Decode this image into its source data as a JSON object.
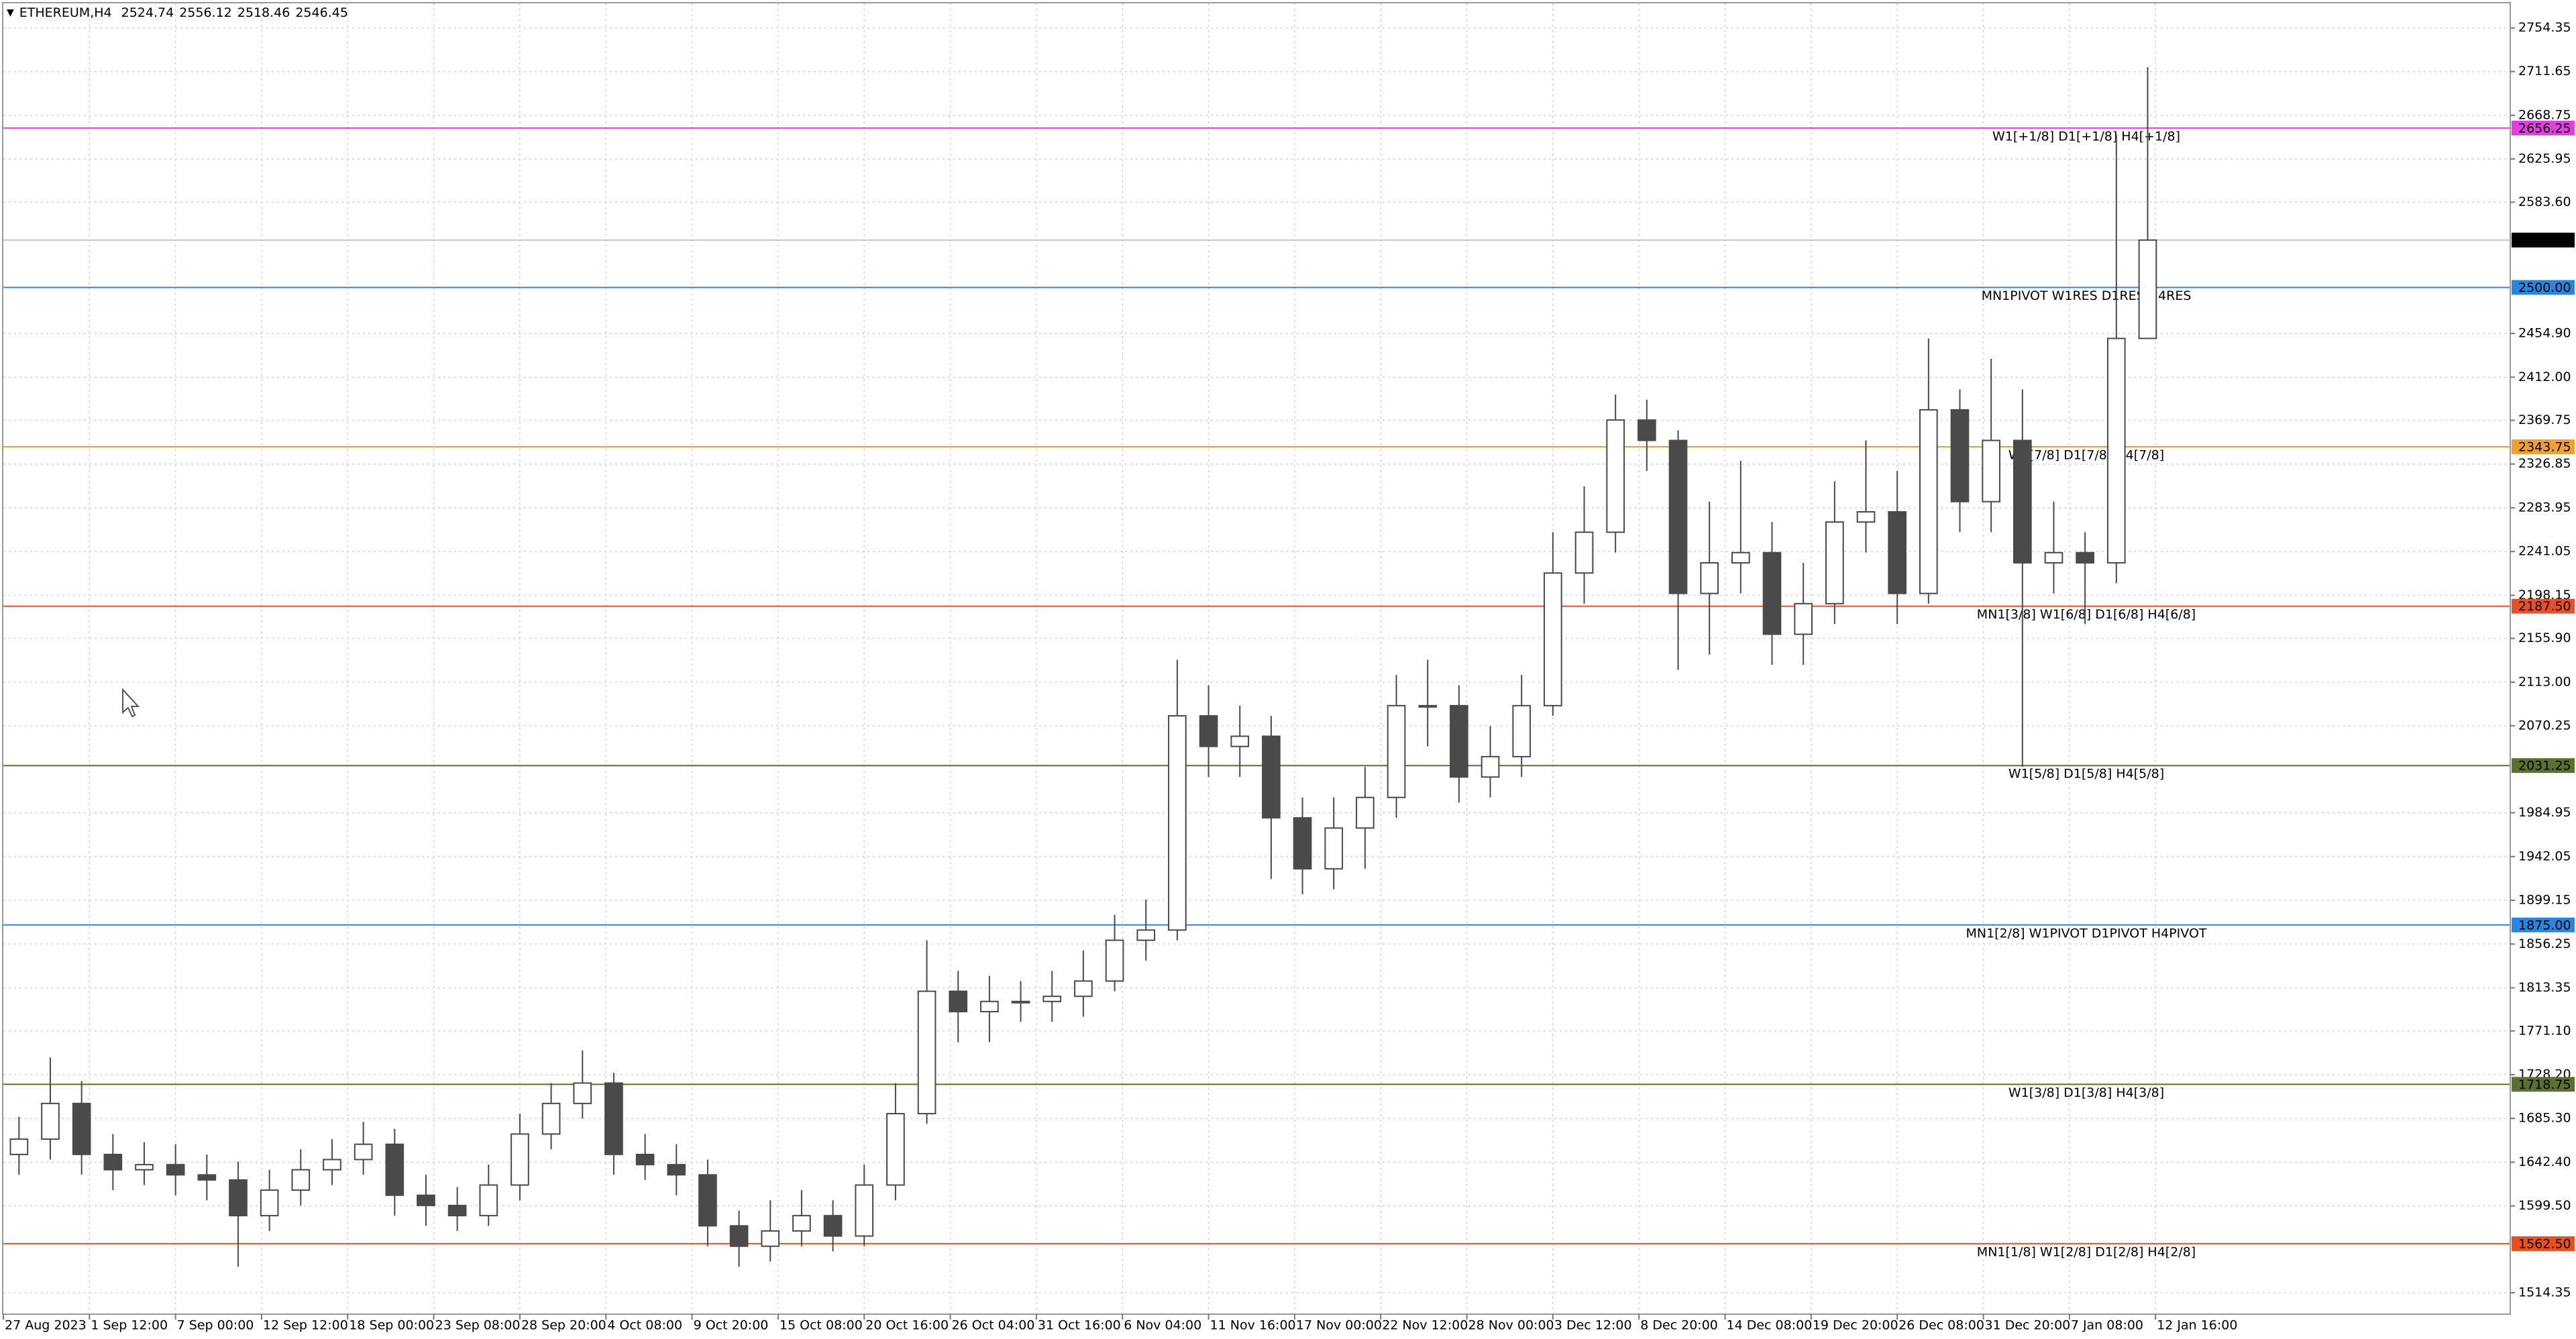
{
  "chart_data": {
    "type": "candlestick",
    "title": "ETHEREUM,H4",
    "ohlc": [
      2524.74,
      2556.12,
      2518.46,
      2546.45
    ],
    "last_price": 2546.45,
    "color": "#4a4a4a",
    "grid": true,
    "xlim": [
      0,
      961
    ],
    "ylim": [
      1493.4,
      2778.5
    ],
    "xticks": [
      {
        "value": 0,
        "label": "27 Aug 2023"
      },
      {
        "value": 33,
        "label": "1 Sep 12:00"
      },
      {
        "value": 66,
        "label": "7 Sep 00:00"
      },
      {
        "value": 99,
        "label": "12 Sep 12:00"
      },
      {
        "value": 132,
        "label": "18 Sep 00:00"
      },
      {
        "value": 165,
        "label": "23 Sep 08:00"
      },
      {
        "value": 198,
        "label": "28 Sep 20:00"
      },
      {
        "value": 231,
        "label": "4 Oct 08:00"
      },
      {
        "value": 264,
        "label": "9 Oct 20:00"
      },
      {
        "value": 297,
        "label": "15 Oct 08:00"
      },
      {
        "value": 330,
        "label": "20 Oct 16:00"
      },
      {
        "value": 363,
        "label": "26 Oct 04:00"
      },
      {
        "value": 396,
        "label": "31 Oct 16:00"
      },
      {
        "value": 429,
        "label": "6 Nov 04:00"
      },
      {
        "value": 462,
        "label": "11 Nov 16:00"
      },
      {
        "value": 495,
        "label": "17 Nov 00:00"
      },
      {
        "value": 528,
        "label": "22 Nov 12:00"
      },
      {
        "value": 561,
        "label": "28 Nov 00:00"
      },
      {
        "value": 594,
        "label": "3 Dec 12:00"
      },
      {
        "value": 627,
        "label": "8 Dec 20:00"
      },
      {
        "value": 660,
        "label": "14 Dec 08:00"
      },
      {
        "value": 693,
        "label": "19 Dec 20:00"
      },
      {
        "value": 726,
        "label": "26 Dec 08:00"
      },
      {
        "value": 759,
        "label": "31 Dec 20:00"
      },
      {
        "value": 792,
        "label": "7 Jan 08:00"
      },
      {
        "value": 825,
        "label": "12 Jan 16:00"
      }
    ],
    "yticks": [
      2754.35,
      2711.65,
      2668.75,
      2625.95,
      {
        "value": 2583.6,
        "label": "2583.60"
      },
      {
        "value": 2454.9,
        "label": "2454.90"
      },
      {
        "value": 2412,
        "label": "2412.00"
      },
      2369.75,
      2326.85,
      2283.95,
      2241.05,
      2198.15,
      {
        "value": 2155.9,
        "label": "2155.90"
      },
      {
        "value": 2113,
        "label": "2113.00"
      },
      2070.25,
      1984.95,
      1942.05,
      1899.15,
      1856.25,
      1813.35,
      {
        "value": 1771.1,
        "label": "1771.10"
      },
      {
        "value": 1728.2,
        "label": "1728.20"
      },
      {
        "value": 1685.3,
        "label": "1685.30"
      },
      {
        "value": 1642.4,
        "label": "1642.40"
      },
      {
        "value": 1599.5,
        "label": "1599.50"
      },
      1514.35
    ],
    "levels": [
      {
        "name": "W1[+1/8] D1[+1/8] H4[+1/8]",
        "value": 2656.25,
        "color": "#e040e0"
      },
      {
        "name": "MN1PIVOT W1RES D1RES H4RES",
        "value": 2500,
        "value_label": "2500.00",
        "color": "#2a86dc"
      },
      {
        "name": "W1[7/8] D1[7/8] H4[7/8]",
        "value": 2343.75,
        "color": "#f0a030"
      },
      {
        "name": "MN1[3/8] W1[6/8] D1[6/8] H4[6/8]",
        "value": 2187.5,
        "value_label": "2187.50",
        "color": "#e8502a"
      },
      {
        "name": "W1[5/8] D1[5/8] H4[5/8]",
        "value": 2031.25,
        "color": "#5e6e2e"
      },
      {
        "name": "MN1[2/8] W1PIVOT D1PIVOT H4PIVOT",
        "value": 1875,
        "value_label": "1875.00",
        "color": "#2a86dc"
      },
      {
        "name": "W1[3/8] D1[3/8] H4[3/8]",
        "value": 1718.75,
        "color": "#5e6e2e"
      },
      {
        "name": "MN1[1/8] W1[2/8] D1[2/8] H4[2/8]",
        "value": 1562.5,
        "value_label": "1562.50",
        "color": "#e85020"
      }
    ],
    "x": [
      6,
      18,
      30,
      42,
      54,
      66,
      78,
      90,
      102,
      114,
      126,
      138,
      150,
      162,
      174,
      186,
      198,
      210,
      222,
      234,
      246,
      258,
      270,
      282,
      294,
      306,
      318,
      330,
      342,
      354,
      366,
      378,
      390,
      402,
      414,
      426,
      438,
      450,
      462,
      474,
      486,
      498,
      510,
      522,
      534,
      546,
      558,
      570,
      582,
      594,
      606,
      618,
      630,
      642,
      654,
      666,
      678,
      690,
      702,
      714,
      726,
      738,
      750,
      762,
      774,
      786,
      798,
      810,
      822
    ],
    "open": [
      1650,
      1665,
      1700,
      1650,
      1635,
      1640,
      1630,
      1625,
      1590,
      1615,
      1635,
      1645,
      1660,
      1610,
      1600,
      1590,
      1620,
      1670,
      1700,
      1720,
      1650,
      1640,
      1630,
      1580,
      1560,
      1575,
      1590,
      1570,
      1620,
      1690,
      1810,
      1790,
      1800,
      1800,
      1805,
      1820,
      1860,
      1870,
      2080,
      2050,
      2060,
      1980,
      1930,
      1970,
      2000,
      2090,
      2090,
      2020,
      2040,
      2090,
      2220,
      2260,
      2370,
      2350,
      2200,
      2230,
      2240,
      2160,
      2190,
      2270,
      2280,
      2200,
      2380,
      2290,
      2350,
      2230,
      2240,
      2230,
      2450
    ],
    "high": [
      1687,
      1745,
      1722,
      1670,
      1662,
      1660,
      1650,
      1643,
      1635,
      1655,
      1665,
      1682,
      1675,
      1630,
      1618,
      1640,
      1690,
      1720,
      1752,
      1730,
      1670,
      1660,
      1645,
      1595,
      1605,
      1615,
      1605,
      1640,
      1720,
      1860,
      1830,
      1825,
      1820,
      1830,
      1850,
      1885,
      1900,
      2135,
      2110,
      2090,
      2080,
      2000,
      2000,
      2030,
      2120,
      2135,
      2110,
      2070,
      2120,
      2260,
      2305,
      2395,
      2390,
      2360,
      2290,
      2330,
      2270,
      2230,
      2310,
      2350,
      2320,
      2450,
      2400,
      2430,
      2400,
      2290,
      2260,
      2650,
      2716
    ],
    "low": [
      1630,
      1645,
      1630,
      1615,
      1620,
      1610,
      1605,
      1540,
      1575,
      1600,
      1620,
      1630,
      1590,
      1580,
      1575,
      1580,
      1605,
      1655,
      1685,
      1630,
      1625,
      1610,
      1560,
      1540,
      1545,
      1560,
      1555,
      1560,
      1605,
      1680,
      1760,
      1760,
      1780,
      1780,
      1785,
      1810,
      1840,
      1860,
      2020,
      2020,
      1920,
      1905,
      1910,
      1930,
      1980,
      2050,
      1995,
      2000,
      2020,
      2080,
      2190,
      2240,
      2320,
      2125,
      2140,
      2200,
      2130,
      2130,
      2170,
      2240,
      2170,
      2190,
      2260,
      2260,
      2030,
      2200,
      2170,
      2210,
      2455
    ],
    "close": [
      1665,
      1700,
      1650,
      1635,
      1640,
      1630,
      1625,
      1590,
      1615,
      1635,
      1645,
      1660,
      1610,
      1600,
      1590,
      1620,
      1670,
      1700,
      1720,
      1650,
      1640,
      1630,
      1580,
      1560,
      1575,
      1590,
      1570,
      1620,
      1690,
      1810,
      1790,
      1800,
      1800,
      1805,
      1820,
      1860,
      1870,
      2080,
      2050,
      2060,
      1980,
      1930,
      1970,
      2000,
      2090,
      2090,
      2020,
      2040,
      2090,
      2220,
      2260,
      2370,
      2350,
      2200,
      2230,
      2240,
      2160,
      2190,
      2270,
      2280,
      2200,
      2380,
      2290,
      2350,
      2230,
      2240,
      2230,
      2450,
      2546.45
    ]
  }
}
